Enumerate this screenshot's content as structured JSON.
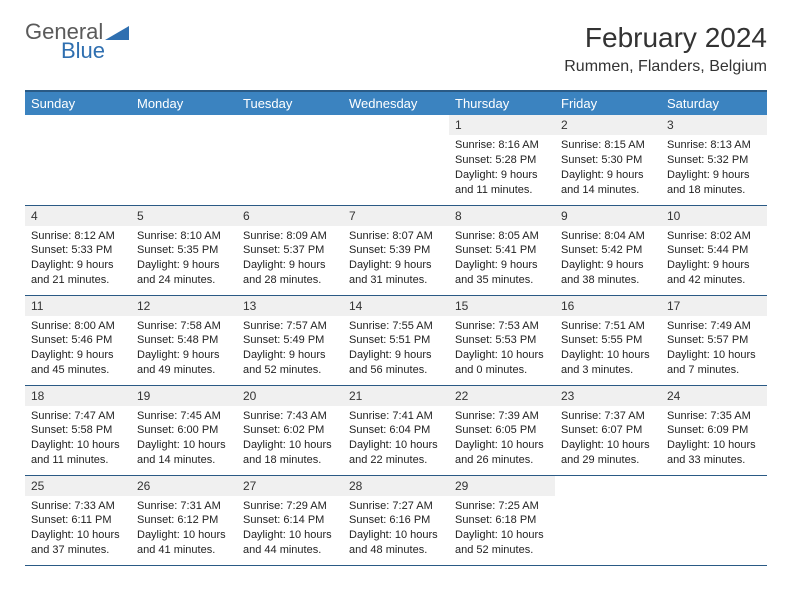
{
  "logo": {
    "general": "General",
    "blue": "Blue"
  },
  "title": "February 2024",
  "location": "Rummen, Flanders, Belgium",
  "colors": {
    "header_bg": "#3b83c0",
    "header_text": "#ffffff",
    "border": "#2a5a85",
    "daynum_bg": "#f0f0f0",
    "logo_gray": "#5a5a5a",
    "logo_blue": "#2f6fb0"
  },
  "dayHeaders": [
    "Sunday",
    "Monday",
    "Tuesday",
    "Wednesday",
    "Thursday",
    "Friday",
    "Saturday"
  ],
  "weeks": [
    [
      null,
      null,
      null,
      null,
      {
        "n": "1",
        "sr": "8:16 AM",
        "ss": "5:28 PM",
        "dl": "9 hours and 11 minutes."
      },
      {
        "n": "2",
        "sr": "8:15 AM",
        "ss": "5:30 PM",
        "dl": "9 hours and 14 minutes."
      },
      {
        "n": "3",
        "sr": "8:13 AM",
        "ss": "5:32 PM",
        "dl": "9 hours and 18 minutes."
      }
    ],
    [
      {
        "n": "4",
        "sr": "8:12 AM",
        "ss": "5:33 PM",
        "dl": "9 hours and 21 minutes."
      },
      {
        "n": "5",
        "sr": "8:10 AM",
        "ss": "5:35 PM",
        "dl": "9 hours and 24 minutes."
      },
      {
        "n": "6",
        "sr": "8:09 AM",
        "ss": "5:37 PM",
        "dl": "9 hours and 28 minutes."
      },
      {
        "n": "7",
        "sr": "8:07 AM",
        "ss": "5:39 PM",
        "dl": "9 hours and 31 minutes."
      },
      {
        "n": "8",
        "sr": "8:05 AM",
        "ss": "5:41 PM",
        "dl": "9 hours and 35 minutes."
      },
      {
        "n": "9",
        "sr": "8:04 AM",
        "ss": "5:42 PM",
        "dl": "9 hours and 38 minutes."
      },
      {
        "n": "10",
        "sr": "8:02 AM",
        "ss": "5:44 PM",
        "dl": "9 hours and 42 minutes."
      }
    ],
    [
      {
        "n": "11",
        "sr": "8:00 AM",
        "ss": "5:46 PM",
        "dl": "9 hours and 45 minutes."
      },
      {
        "n": "12",
        "sr": "7:58 AM",
        "ss": "5:48 PM",
        "dl": "9 hours and 49 minutes."
      },
      {
        "n": "13",
        "sr": "7:57 AM",
        "ss": "5:49 PM",
        "dl": "9 hours and 52 minutes."
      },
      {
        "n": "14",
        "sr": "7:55 AM",
        "ss": "5:51 PM",
        "dl": "9 hours and 56 minutes."
      },
      {
        "n": "15",
        "sr": "7:53 AM",
        "ss": "5:53 PM",
        "dl": "10 hours and 0 minutes."
      },
      {
        "n": "16",
        "sr": "7:51 AM",
        "ss": "5:55 PM",
        "dl": "10 hours and 3 minutes."
      },
      {
        "n": "17",
        "sr": "7:49 AM",
        "ss": "5:57 PM",
        "dl": "10 hours and 7 minutes."
      }
    ],
    [
      {
        "n": "18",
        "sr": "7:47 AM",
        "ss": "5:58 PM",
        "dl": "10 hours and 11 minutes."
      },
      {
        "n": "19",
        "sr": "7:45 AM",
        "ss": "6:00 PM",
        "dl": "10 hours and 14 minutes."
      },
      {
        "n": "20",
        "sr": "7:43 AM",
        "ss": "6:02 PM",
        "dl": "10 hours and 18 minutes."
      },
      {
        "n": "21",
        "sr": "7:41 AM",
        "ss": "6:04 PM",
        "dl": "10 hours and 22 minutes."
      },
      {
        "n": "22",
        "sr": "7:39 AM",
        "ss": "6:05 PM",
        "dl": "10 hours and 26 minutes."
      },
      {
        "n": "23",
        "sr": "7:37 AM",
        "ss": "6:07 PM",
        "dl": "10 hours and 29 minutes."
      },
      {
        "n": "24",
        "sr": "7:35 AM",
        "ss": "6:09 PM",
        "dl": "10 hours and 33 minutes."
      }
    ],
    [
      {
        "n": "25",
        "sr": "7:33 AM",
        "ss": "6:11 PM",
        "dl": "10 hours and 37 minutes."
      },
      {
        "n": "26",
        "sr": "7:31 AM",
        "ss": "6:12 PM",
        "dl": "10 hours and 41 minutes."
      },
      {
        "n": "27",
        "sr": "7:29 AM",
        "ss": "6:14 PM",
        "dl": "10 hours and 44 minutes."
      },
      {
        "n": "28",
        "sr": "7:27 AM",
        "ss": "6:16 PM",
        "dl": "10 hours and 48 minutes."
      },
      {
        "n": "29",
        "sr": "7:25 AM",
        "ss": "6:18 PM",
        "dl": "10 hours and 52 minutes."
      },
      null,
      null
    ]
  ],
  "labels": {
    "sunrise": "Sunrise:",
    "sunset": "Sunset:",
    "daylight": "Daylight:"
  }
}
